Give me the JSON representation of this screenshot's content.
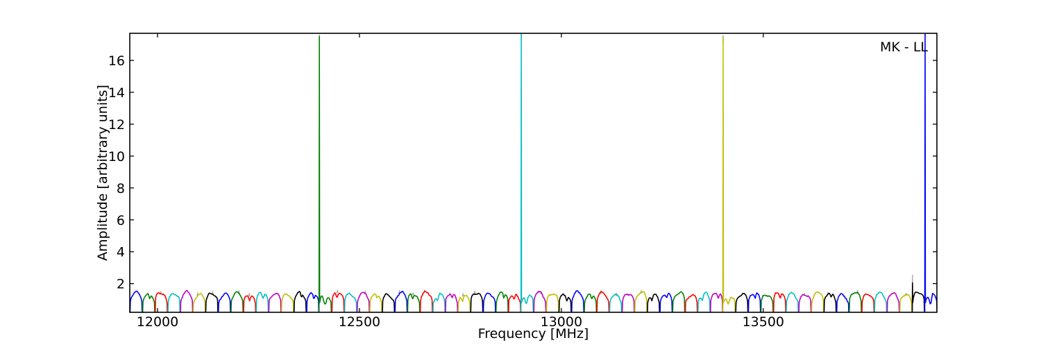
{
  "chart_data": {
    "type": "line",
    "title": "",
    "xlabel": "Frequency [MHz]",
    "ylabel": "Amplitude [arbitrary units]",
    "annotation": "MK - LL",
    "xlim": [
      11931.25,
      13930
    ],
    "ylim": [
      0.2,
      17.7
    ],
    "xticks": [
      12000,
      12500,
      13000,
      13500
    ],
    "yticks": [
      2,
      4,
      6,
      8,
      10,
      12,
      14,
      16
    ],
    "grid": false,
    "tick_direction": "in",
    "axis_color": "#000000",
    "background_color": "#ffffff",
    "gray_color": "#aaaaaa",
    "color_cycle": [
      "#0000ff",
      "#008000",
      "#ff0000",
      "#00bfbf",
      "#bf00bf",
      "#bfbf00",
      "#000000"
    ],
    "subbands": {
      "count": 64,
      "start_mhz": 11931.25,
      "width_mhz": 31.25,
      "description": "contiguous bandpass arches, colors cycle b-g-r-c-m-y-k, edges dip to zero between subbands",
      "peak_amplitudes": [
        1.45,
        1.33,
        1.42,
        1.36,
        1.47,
        1.3,
        1.38,
        1.34,
        1.41,
        1.27,
        1.44,
        1.37,
        1.31,
        1.43,
        1.39,
        1.25,
        1.46,
        1.32,
        1.4,
        1.35,
        1.29,
        1.43,
        1.34,
        1.47,
        1.3,
        1.38,
        1.26,
        1.41,
        1.36,
        1.45,
        1.31,
        1.27,
        1.42,
        1.37,
        1.3,
        1.46,
        1.33,
        1.4,
        1.28,
        1.36,
        1.45,
        1.31,
        1.39,
        1.43,
        1.26,
        1.37,
        1.44,
        1.18,
        1.33,
        1.41,
        1.29,
        1.46,
        1.36,
        1.31,
        1.43,
        1.38,
        1.27,
        1.45,
        1.33,
        1.4,
        1.37,
        1.31,
        1.48,
        1.35
      ]
    },
    "spikes": [
      {
        "segment": 15,
        "freq_mhz": 12400,
        "amplitude": 17.5,
        "gray_tip": 17.62,
        "color": "#008000",
        "clipped_at_top": false
      },
      {
        "segment": 31,
        "freq_mhz": 12900,
        "amplitude": 17.65,
        "gray_tip": 18.1,
        "color": "#00bfbf",
        "clipped_at_top": true
      },
      {
        "segment": 47,
        "freq_mhz": 13400,
        "amplitude": 17.45,
        "gray_tip": 17.58,
        "color": "#bfbf00",
        "clipped_at_top": false
      },
      {
        "segment": 62,
        "freq_mhz": 13868.75,
        "amplitude": 2.05,
        "gray_tip": 2.55,
        "color": "#000000",
        "clipped_at_top": false
      },
      {
        "segment": 63,
        "freq_mhz": 13900,
        "amplitude": 17.65,
        "gray_tip": 18.1,
        "color": "#0000ff",
        "clipped_at_top": true
      }
    ]
  }
}
